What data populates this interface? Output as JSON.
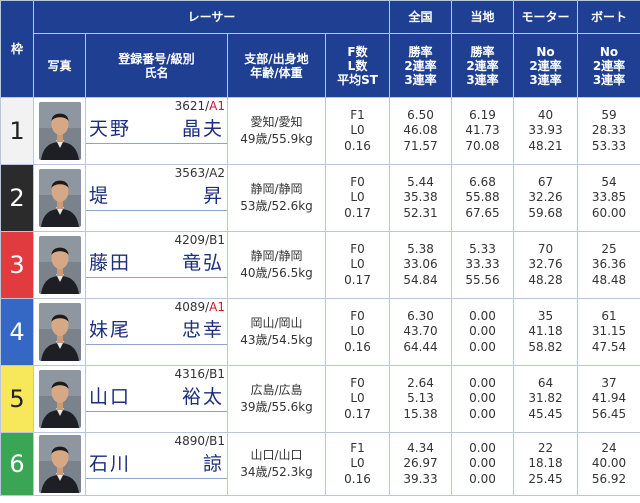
{
  "header": {
    "waku": "枠",
    "racer_group": "レーサー",
    "photo": "写真",
    "reg_line1": "登録番号/級別",
    "reg_line2": "氏名",
    "branch_line1": "支部/出身地",
    "branch_line2": "年齢/体重",
    "fst_line1": "F数",
    "fst_line2": "L数",
    "fst_line3": "平均ST",
    "zenkoku": "全国",
    "touchi": "当地",
    "motor": "モーター",
    "boat": "ボート",
    "rate_line1": "勝率",
    "rate_line2": "2連率",
    "rate_line3": "3連率",
    "no_line1": "No",
    "no_line2": "2連率",
    "no_line3": "3連率"
  },
  "colors": {
    "header_bg": "#1f3f93",
    "class_a1": "#d6132a",
    "name_text": "#1d2e7d"
  },
  "racers": [
    {
      "waku": "1",
      "waku_bg": "#f2f2f2",
      "waku_fg": "#222222",
      "reg_no": "3621/",
      "class": "A1",
      "is_a1": true,
      "name_family": "天野",
      "name_given": "晶夫",
      "branch": "愛知/愛知",
      "age_weight": "49歳/55.9kg",
      "f": "F1",
      "l": "L0",
      "st": "0.16",
      "zen_win": "6.50",
      "zen_2": "46.08",
      "zen_3": "71.57",
      "to_win": "6.19",
      "to_2": "41.73",
      "to_3": "70.08",
      "motor_no": "40",
      "motor_2": "33.93",
      "motor_3": "48.21",
      "boat_no": "59",
      "boat_2": "28.33",
      "boat_3": "53.33"
    },
    {
      "waku": "2",
      "waku_bg": "#2b2b2b",
      "waku_fg": "#ffffff",
      "reg_no": "3563/",
      "class": "A2",
      "is_a1": false,
      "name_family": "堤",
      "name_given": "昇",
      "branch": "静岡/静岡",
      "age_weight": "53歳/52.6kg",
      "f": "F0",
      "l": "L0",
      "st": "0.17",
      "zen_win": "5.44",
      "zen_2": "35.38",
      "zen_3": "52.31",
      "to_win": "6.68",
      "to_2": "55.88",
      "to_3": "67.65",
      "motor_no": "67",
      "motor_2": "32.26",
      "motor_3": "59.68",
      "boat_no": "54",
      "boat_2": "33.85",
      "boat_3": "60.00"
    },
    {
      "waku": "3",
      "waku_bg": "#e23b3f",
      "waku_fg": "#ffffff",
      "reg_no": "4209/",
      "class": "B1",
      "is_a1": false,
      "name_family": "藤田",
      "name_given": "竜弘",
      "branch": "静岡/静岡",
      "age_weight": "40歳/56.5kg",
      "f": "F0",
      "l": "L0",
      "st": "0.17",
      "zen_win": "5.38",
      "zen_2": "33.06",
      "zen_3": "54.84",
      "to_win": "5.33",
      "to_2": "33.33",
      "to_3": "55.56",
      "motor_no": "70",
      "motor_2": "32.76",
      "motor_3": "48.28",
      "boat_no": "25",
      "boat_2": "36.36",
      "boat_3": "48.48"
    },
    {
      "waku": "4",
      "waku_bg": "#3567c5",
      "waku_fg": "#ffffff",
      "reg_no": "4089/",
      "class": "A1",
      "is_a1": true,
      "name_family": "妹尾",
      "name_given": "忠幸",
      "branch": "岡山/岡山",
      "age_weight": "43歳/54.5kg",
      "f": "F0",
      "l": "L0",
      "st": "0.16",
      "zen_win": "6.30",
      "zen_2": "43.70",
      "zen_3": "64.44",
      "to_win": "0.00",
      "to_2": "0.00",
      "to_3": "0.00",
      "motor_no": "35",
      "motor_2": "41.18",
      "motor_3": "58.82",
      "boat_no": "61",
      "boat_2": "31.15",
      "boat_3": "47.54"
    },
    {
      "waku": "5",
      "waku_bg": "#f6e85a",
      "waku_fg": "#222222",
      "reg_no": "4316/",
      "class": "B1",
      "is_a1": false,
      "name_family": "山口",
      "name_given": "裕太",
      "branch": "広島/広島",
      "age_weight": "39歳/55.6kg",
      "f": "F0",
      "l": "L0",
      "st": "0.17",
      "zen_win": "2.64",
      "zen_2": "5.13",
      "zen_3": "15.38",
      "to_win": "0.00",
      "to_2": "0.00",
      "to_3": "0.00",
      "motor_no": "64",
      "motor_2": "31.82",
      "motor_3": "45.45",
      "boat_no": "37",
      "boat_2": "41.94",
      "boat_3": "56.45"
    },
    {
      "waku": "6",
      "waku_bg": "#3aa655",
      "waku_fg": "#ffffff",
      "reg_no": "4890/",
      "class": "B1",
      "is_a1": false,
      "name_family": "石川",
      "name_given": "諒",
      "branch": "山口/山口",
      "age_weight": "34歳/52.3kg",
      "f": "F1",
      "l": "L0",
      "st": "0.16",
      "zen_win": "4.34",
      "zen_2": "26.97",
      "zen_3": "39.33",
      "to_win": "0.00",
      "to_2": "0.00",
      "to_3": "0.00",
      "motor_no": "22",
      "motor_2": "18.18",
      "motor_3": "25.45",
      "boat_no": "24",
      "boat_2": "40.00",
      "boat_3": "56.92"
    }
  ]
}
